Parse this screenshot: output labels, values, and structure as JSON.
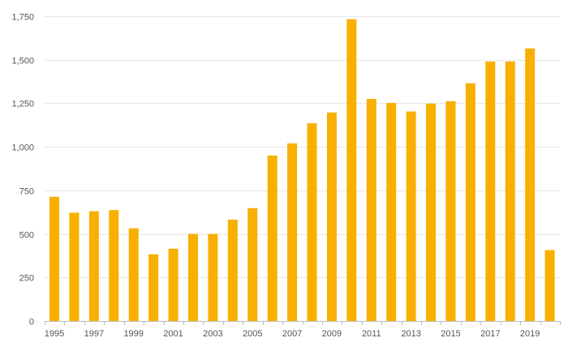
{
  "chart_data": {
    "type": "bar",
    "categories": [
      "1995",
      "1996",
      "1997",
      "1998",
      "1999",
      "2000",
      "2001",
      "2002",
      "2003",
      "2004",
      "2005",
      "2006",
      "2007",
      "2008",
      "2009",
      "2010",
      "2011",
      "2012",
      "2013",
      "2014",
      "2015",
      "2016",
      "2017",
      "2018",
      "2019",
      "2020"
    ],
    "series": [
      {
        "values": [
          713,
          622,
          630,
          637,
          532,
          383,
          415,
          500,
          500,
          582,
          648,
          950,
          1020,
          1135,
          1197,
          1733,
          1275,
          1252,
          1203,
          1248,
          1262,
          1365,
          1490,
          1490,
          1565,
          407
        ]
      }
    ],
    "x_tick_labels": [
      "1995",
      "1997",
      "1999",
      "2001",
      "2003",
      "2005",
      "2007",
      "2009",
      "2011",
      "2013",
      "2015",
      "2017",
      "2019"
    ],
    "y_ticks": [
      0,
      250,
      500,
      750,
      1000,
      1250,
      1500,
      1750
    ],
    "y_tick_labels": [
      "0",
      "250",
      "500",
      "750",
      "1,000",
      "1,250",
      "1,500",
      "1,750"
    ],
    "ylim": [
      0,
      1750
    ],
    "title": "",
    "xlabel": "",
    "ylabel": "",
    "grid": true,
    "legend": "none",
    "colors": {
      "bar": "#F7B000",
      "grid": "#e6e6e6",
      "axis": "#bdbdbd",
      "text": "#555555"
    }
  }
}
